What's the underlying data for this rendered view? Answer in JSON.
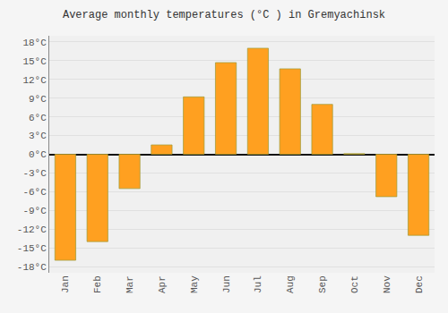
{
  "chart_data": {
    "type": "bar",
    "title": "Average monthly temperatures (°C ) in Gremyachinsk",
    "categories": [
      "Jan",
      "Feb",
      "Mar",
      "Apr",
      "May",
      "Jun",
      "Jul",
      "Aug",
      "Sep",
      "Oct",
      "Nov",
      "Dec"
    ],
    "values": [
      -17,
      -14,
      -5.5,
      1.5,
      9.2,
      14.7,
      17.0,
      13.7,
      8.0,
      0.1,
      -6.8,
      -13.0
    ],
    "color": "#FFA020",
    "ylim": [
      -19,
      19
    ],
    "yticks": [
      {
        "value": -18,
        "label": "-18°C"
      },
      {
        "value": -15,
        "label": "-15°C"
      },
      {
        "value": -12,
        "label": "-12°C"
      },
      {
        "value": -9,
        "label": "-9°C"
      },
      {
        "value": -6,
        "label": "-6°C"
      },
      {
        "value": -3,
        "label": "-3°C"
      },
      {
        "value": 0,
        "label": "0°C"
      },
      {
        "value": 3,
        "label": "3°C"
      },
      {
        "value": 6,
        "label": "6°C"
      },
      {
        "value": 9,
        "label": "9°C"
      },
      {
        "value": 12,
        "label": "12°C"
      },
      {
        "value": 15,
        "label": "15°C"
      },
      {
        "value": 18,
        "label": "18°C"
      }
    ],
    "grid": true
  }
}
